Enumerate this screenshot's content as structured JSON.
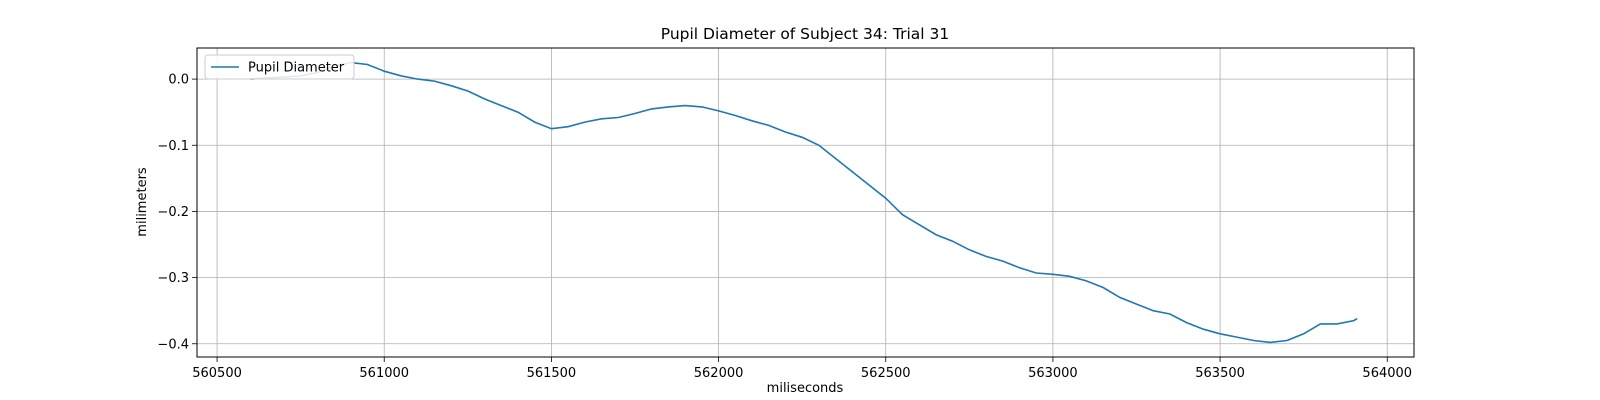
{
  "chart_data": {
    "type": "line",
    "title": "Pupil Diameter of Subject 34: Trial 31",
    "xlabel": "miliseconds",
    "ylabel": "milimeters",
    "xlim": [
      560440,
      564080
    ],
    "ylim": [
      -0.42,
      0.047
    ],
    "xticks": [
      560500,
      561000,
      561500,
      562000,
      562500,
      563000,
      563500,
      564000
    ],
    "yticks": [
      0.0,
      -0.1,
      -0.2,
      -0.3,
      -0.4
    ],
    "grid": true,
    "legend_position": "top-left",
    "series": [
      {
        "name": "Pupil Diameter",
        "color": "#1f77b4",
        "x": [
          560600,
          560650,
          560700,
          560750,
          560800,
          560850,
          560900,
          560950,
          561000,
          561050,
          561100,
          561150,
          561200,
          561250,
          561300,
          561350,
          561400,
          561450,
          561500,
          561550,
          561600,
          561650,
          561700,
          561750,
          561800,
          561850,
          561900,
          561950,
          562000,
          562050,
          562100,
          562150,
          562200,
          562250,
          562300,
          562350,
          562400,
          562450,
          562500,
          562550,
          562600,
          562650,
          562700,
          562750,
          562800,
          562850,
          562900,
          562950,
          563000,
          563050,
          563100,
          563150,
          563200,
          563250,
          563300,
          563350,
          563400,
          563450,
          563500,
          563550,
          563600,
          563650,
          563700,
          563750,
          563800,
          563850,
          563900,
          563910
        ],
        "y": [
          0.0,
          0.002,
          0.003,
          0.005,
          0.01,
          0.02,
          0.025,
          0.022,
          0.012,
          0.005,
          0.0,
          -0.003,
          -0.01,
          -0.018,
          -0.03,
          -0.04,
          -0.05,
          -0.065,
          -0.075,
          -0.072,
          -0.065,
          -0.06,
          -0.058,
          -0.052,
          -0.045,
          -0.042,
          -0.04,
          -0.042,
          -0.048,
          -0.055,
          -0.063,
          -0.07,
          -0.08,
          -0.088,
          -0.1,
          -0.12,
          -0.14,
          -0.16,
          -0.18,
          -0.205,
          -0.22,
          -0.235,
          -0.245,
          -0.258,
          -0.268,
          -0.275,
          -0.285,
          -0.293,
          -0.295,
          -0.298,
          -0.305,
          -0.315,
          -0.33,
          -0.34,
          -0.35,
          -0.355,
          -0.368,
          -0.378,
          -0.385,
          -0.39,
          -0.395,
          -0.398,
          -0.395,
          -0.385,
          -0.37,
          -0.37,
          -0.365,
          -0.362
        ]
      }
    ]
  }
}
